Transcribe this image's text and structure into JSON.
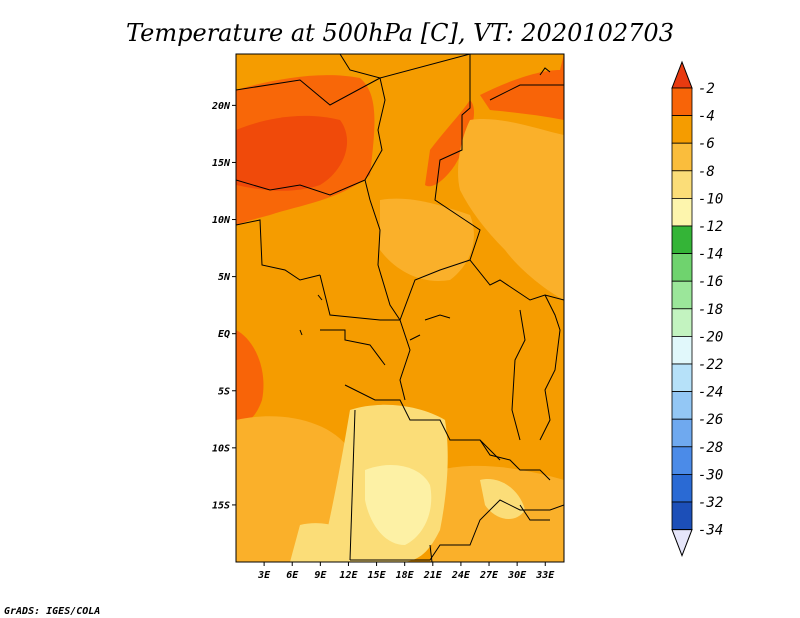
{
  "title": "Temperature at 500hPa [C], VT: 2020102703",
  "credit": "GrADS: IGES/COLA",
  "map": {
    "lon_range": [
      0,
      35
    ],
    "lat_range": [
      -20,
      24.5
    ],
    "lat_ticks": [
      {
        "value": 20,
        "label": "20N"
      },
      {
        "value": 15,
        "label": "15N"
      },
      {
        "value": 10,
        "label": "10N"
      },
      {
        "value": 5,
        "label": "5N"
      },
      {
        "value": 0,
        "label": "EQ"
      },
      {
        "value": -5,
        "label": "5S"
      },
      {
        "value": -10,
        "label": "10S"
      },
      {
        "value": -15,
        "label": "15S"
      }
    ],
    "lon_ticks": [
      {
        "value": 3,
        "label": "3E"
      },
      {
        "value": 6,
        "label": "6E"
      },
      {
        "value": 9,
        "label": "9E"
      },
      {
        "value": 12,
        "label": "12E"
      },
      {
        "value": 15,
        "label": "15E"
      },
      {
        "value": 18,
        "label": "18E"
      },
      {
        "value": 21,
        "label": "21E"
      },
      {
        "value": 24,
        "label": "24E"
      },
      {
        "value": 27,
        "label": "27E"
      },
      {
        "value": 30,
        "label": "30E"
      },
      {
        "value": 33,
        "label": "33E"
      }
    ]
  },
  "colorbar": {
    "labels": [
      "-2",
      "-4",
      "-6",
      "-8",
      "-10",
      "-12",
      "-14",
      "-16",
      "-18",
      "-20",
      "-22",
      "-24",
      "-26",
      "-28",
      "-30",
      "-32",
      "-34"
    ],
    "top_arrow_color": "#e83a10",
    "bottom_arrow_color": "#e6e6fa",
    "colors": [
      "#f86408",
      "#f59c00",
      "#fabd3c",
      "#fbdd78",
      "#fdf5ad",
      "#34b437",
      "#6fd36e",
      "#9be69a",
      "#c3f3c0",
      "#e1f8fb",
      "#b6e1f9",
      "#93c7f5",
      "#6fa9ef",
      "#4b8be8",
      "#2a6ad4",
      "#1c4fb8",
      "#0c1e82"
    ]
  }
}
